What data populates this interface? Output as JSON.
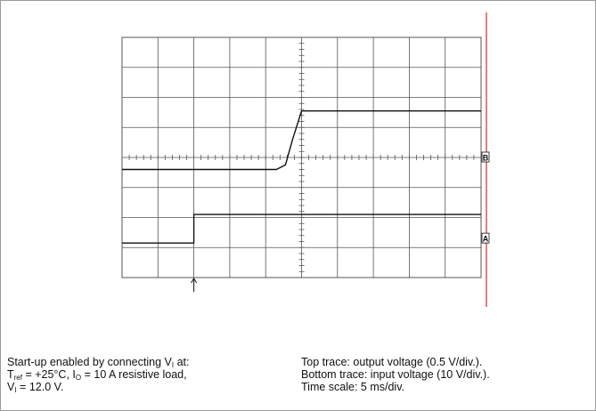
{
  "chart_data": {
    "type": "line",
    "grid": true,
    "divisions": {
      "x": 10,
      "y": 8
    },
    "time_per_div": "5 ms/div.",
    "series": [
      {
        "name": "Top trace: output voltage (0.5 V/div.)",
        "unit_x": "div",
        "unit_y": "div",
        "x": [
          0,
          4.3,
          4.55,
          4.75,
          5.0,
          10
        ],
        "y": [
          3.6,
          3.6,
          3.75,
          4.6,
          5.55,
          5.55
        ]
      },
      {
        "name": "Bottom trace: input voltage (10 V/div.)",
        "unit_x": "div",
        "unit_y": "div",
        "x": [
          0,
          2.0,
          2.0,
          10
        ],
        "y": [
          1.15,
          1.15,
          2.1,
          2.1
        ]
      }
    ],
    "markers": {
      "right_labels": [
        "B",
        "A"
      ],
      "trigger_arrow_x_div": 2.0
    }
  },
  "caption": {
    "left": {
      "line1_prefix": "Start-up enabled by connecting V",
      "line1_sub": "I",
      "line1_suffix": " at:",
      "line2_a": "T",
      "line2_a_sub": "ref",
      "line2_b": " = +25°C, I",
      "line2_b_sub": "O",
      "line2_c": " = 10 A resistive load,",
      "line3_a": "V",
      "line3_a_sub": "I",
      "line3_b": " = 12.0 V."
    },
    "right": {
      "line1": "Top trace: output voltage (0.5 V/div.).",
      "line2": "Bottom trace: input voltage (10 V/div.).",
      "line3": "Time scale: 5 ms/div."
    }
  },
  "colors": {
    "grid": "#555555",
    "trace": "#111111",
    "cursor": "#d62828"
  }
}
